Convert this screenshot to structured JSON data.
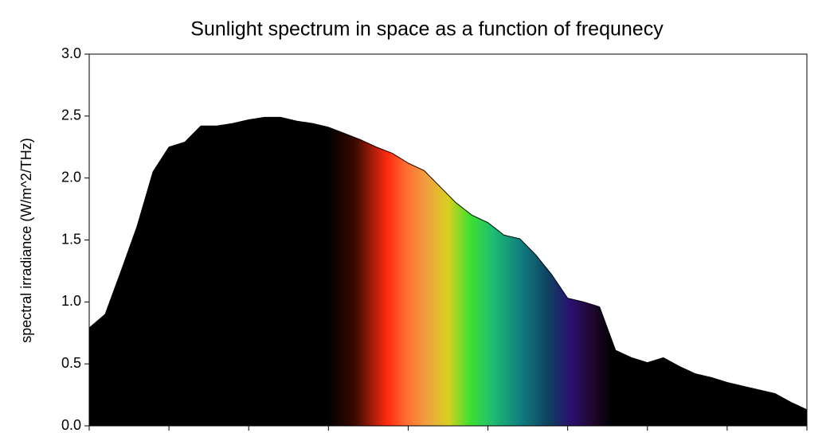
{
  "chart_data": {
    "type": "area",
    "title": "Sunlight spectrum in space as a function of frequnecy",
    "y_label": "spectral irradiance (W/m^2/THz)",
    "x": [
      100,
      120,
      140,
      160,
      180,
      200,
      220,
      240,
      260,
      280,
      300,
      320,
      340,
      360,
      380,
      400,
      420,
      440,
      460,
      480,
      500,
      520,
      540,
      560,
      580,
      600,
      620,
      640,
      660,
      680,
      700,
      720,
      740,
      760,
      780,
      800,
      820,
      840,
      860,
      880,
      900,
      920,
      940,
      960,
      980,
      1000
    ],
    "values": [
      0.79,
      0.9,
      1.25,
      1.61,
      2.05,
      2.25,
      2.29,
      2.42,
      2.42,
      2.44,
      2.47,
      2.49,
      2.49,
      2.46,
      2.44,
      2.41,
      2.36,
      2.31,
      2.25,
      2.2,
      2.12,
      2.06,
      1.93,
      1.8,
      1.7,
      1.64,
      1.54,
      1.51,
      1.38,
      1.22,
      1.03,
      1.0,
      0.96,
      0.61,
      0.55,
      0.51,
      0.55,
      0.48,
      0.42,
      0.39,
      0.35,
      0.32,
      0.29,
      0.26,
      0.19,
      0.13
    ],
    "xlim": [
      100,
      1000
    ],
    "xticks": [
      100,
      200,
      300,
      400,
      500,
      600,
      700,
      800,
      900,
      1000
    ],
    "ylim": [
      0,
      3
    ],
    "yticks": [
      {
        "value": 0,
        "label": "0.0"
      },
      0.5,
      {
        "value": 1,
        "label": "1.0"
      },
      1.5,
      {
        "value": 2,
        "label": "2.0"
      },
      2.5,
      {
        "value": 3,
        "label": "3.0"
      }
    ],
    "grid": false
  }
}
